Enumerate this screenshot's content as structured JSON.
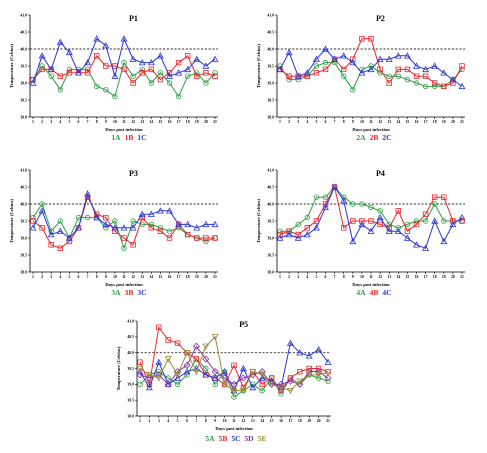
{
  "chart_data": [
    {
      "type": "line",
      "title": "P1",
      "xlabel": "Days post infection",
      "ylabel": "Temperature (Celsius)",
      "ylim": [
        38.0,
        41.0
      ],
      "yticks": [
        "38.0",
        "38.5",
        "39.0",
        "39.5",
        "40.0",
        "40.5",
        "41.0"
      ],
      "x": [
        1,
        2,
        3,
        4,
        5,
        6,
        7,
        8,
        9,
        10,
        11,
        12,
        13,
        14,
        15,
        16,
        17,
        18,
        19,
        20,
        21
      ],
      "reference_line": 40.0,
      "series": [
        {
          "name": "1A",
          "color": "#2e9e44",
          "marker": "circle",
          "values": [
            39.1,
            39.5,
            39.2,
            38.8,
            39.4,
            39.4,
            39.4,
            38.9,
            38.8,
            38.6,
            39.6,
            39.2,
            39.4,
            39.0,
            39.3,
            39.0,
            38.6,
            39.2,
            39.3,
            39.0,
            39.3
          ]
        },
        {
          "name": "1B",
          "color": "#e8262b",
          "marker": "square",
          "values": [
            39.1,
            39.4,
            39.4,
            39.2,
            39.3,
            39.3,
            39.3,
            39.8,
            39.5,
            39.5,
            39.4,
            39.0,
            39.3,
            39.4,
            39.1,
            39.3,
            39.6,
            39.8,
            39.2,
            39.3,
            39.2
          ]
        },
        {
          "name": "1C",
          "color": "#2a35d8",
          "marker": "triangle",
          "values": [
            39.0,
            39.8,
            39.4,
            40.2,
            39.9,
            39.3,
            39.6,
            40.3,
            40.1,
            39.2,
            40.3,
            39.7,
            39.6,
            39.6,
            39.8,
            39.2,
            39.3,
            39.4,
            39.7,
            39.5,
            39.7
          ]
        }
      ]
    },
    {
      "type": "line",
      "title": "P2",
      "xlabel": "Days post infection",
      "ylabel": "Temperature (Celsius)",
      "ylim": [
        38.0,
        41.0
      ],
      "yticks": [
        "38.0",
        "38.5",
        "39.0",
        "39.5",
        "40.0",
        "40.5",
        "41.0"
      ],
      "x": [
        1,
        2,
        3,
        4,
        5,
        6,
        7,
        8,
        9,
        10,
        11,
        12,
        13,
        14,
        15,
        16,
        17,
        18,
        19,
        20,
        21
      ],
      "reference_line": 40.0,
      "series": [
        {
          "name": "2A",
          "color": "#2e9e44",
          "marker": "circle",
          "values": [
            39.5,
            39.1,
            39.1,
            39.2,
            39.5,
            39.6,
            39.6,
            39.2,
            38.8,
            39.4,
            39.5,
            39.3,
            39.2,
            39.2,
            39.1,
            39.0,
            38.9,
            38.9,
            38.9,
            39.1,
            39.4
          ]
        },
        {
          "name": "2B",
          "color": "#e8262b",
          "marker": "square",
          "values": [
            39.4,
            39.2,
            39.2,
            39.2,
            39.3,
            39.4,
            39.7,
            39.4,
            39.7,
            40.3,
            40.3,
            39.4,
            39.0,
            39.4,
            39.4,
            39.2,
            39.2,
            39.0,
            38.9,
            39.0,
            39.5
          ]
        },
        {
          "name": "2C",
          "color": "#2a35d8",
          "marker": "triangle",
          "values": [
            39.4,
            39.9,
            39.2,
            39.3,
            39.7,
            40.0,
            39.7,
            39.8,
            39.6,
            39.3,
            39.4,
            39.7,
            39.7,
            39.8,
            39.8,
            39.5,
            39.4,
            39.5,
            39.3,
            39.1,
            38.9
          ]
        }
      ]
    },
    {
      "type": "line",
      "title": "P3",
      "xlabel": "Days post infection",
      "ylabel": "Temperature (Celsius)",
      "ylim": [
        38.0,
        41.0
      ],
      "yticks": [
        "38.0",
        "38.5",
        "39.0",
        "39.5",
        "40.0",
        "40.5",
        "41.0"
      ],
      "x": [
        1,
        2,
        3,
        4,
        5,
        6,
        7,
        8,
        9,
        10,
        11,
        12,
        13,
        14,
        15,
        16,
        17,
        18,
        19,
        20,
        21
      ],
      "reference_line": 40.0,
      "series": [
        {
          "name": "3A",
          "color": "#2e9e44",
          "marker": "circle",
          "values": [
            39.6,
            40.0,
            39.2,
            39.5,
            39.0,
            39.6,
            39.6,
            39.6,
            39.3,
            39.5,
            38.7,
            39.5,
            39.4,
            39.4,
            39.3,
            39.2,
            39.3,
            39.1,
            39.0,
            38.9,
            39.0
          ]
        },
        {
          "name": "3B",
          "color": "#e8262b",
          "marker": "square",
          "values": [
            39.5,
            39.3,
            38.8,
            38.7,
            38.9,
            39.3,
            40.2,
            39.7,
            39.6,
            39.2,
            39.0,
            38.8,
            39.6,
            39.3,
            39.2,
            39.0,
            39.4,
            39.1,
            39.0,
            39.0,
            39.0
          ]
        },
        {
          "name": "3C",
          "color": "#2a35d8",
          "marker": "triangle",
          "values": [
            39.3,
            39.8,
            39.1,
            39.2,
            39.0,
            39.3,
            40.3,
            39.6,
            39.4,
            39.3,
            39.3,
            39.3,
            39.7,
            39.7,
            39.8,
            39.8,
            39.4,
            39.4,
            39.3,
            39.4,
            39.4
          ]
        }
      ]
    },
    {
      "type": "line",
      "title": "P4",
      "xlabel": "Days post infection",
      "ylabel": "Temperature (Celsius)",
      "ylim": [
        38.0,
        41.0
      ],
      "yticks": [
        "38.0",
        "38.5",
        "39.0",
        "39.5",
        "40.0",
        "40.5",
        "41.0"
      ],
      "x": [
        1,
        2,
        3,
        4,
        5,
        6,
        7,
        8,
        9,
        10,
        11,
        12,
        13,
        14,
        15,
        16,
        17,
        18,
        19,
        20,
        21
      ],
      "reference_line": 40.0,
      "series": [
        {
          "name": "4A",
          "color": "#2e9e44",
          "marker": "circle",
          "values": [
            39.2,
            39.2,
            39.4,
            39.6,
            40.2,
            40.2,
            40.5,
            40.2,
            40.0,
            40.0,
            39.9,
            39.8,
            39.4,
            39.3,
            39.4,
            39.5,
            39.5,
            40.0,
            39.5,
            39.5,
            39.5
          ]
        },
        {
          "name": "4B",
          "color": "#e8262b",
          "marker": "square",
          "values": [
            39.1,
            39.2,
            39.1,
            39.3,
            39.5,
            40.0,
            40.5,
            39.3,
            39.5,
            39.5,
            39.5,
            39.4,
            39.3,
            39.8,
            39.2,
            39.4,
            39.7,
            40.2,
            40.2,
            39.5,
            39.5
          ]
        },
        {
          "name": "4C",
          "color": "#2a35d8",
          "marker": "triangle",
          "values": [
            39.0,
            39.1,
            39.0,
            39.1,
            39.3,
            39.9,
            40.5,
            40.1,
            38.9,
            39.4,
            39.2,
            39.6,
            39.2,
            39.2,
            39.0,
            38.8,
            38.7,
            39.5,
            38.9,
            39.4,
            39.6
          ]
        }
      ]
    },
    {
      "type": "line",
      "title": "P5",
      "xlabel": "Days post infection",
      "ylabel": "Temperature (Celsius)",
      "ylim": [
        38.0,
        41.0
      ],
      "yticks": [
        "38.0",
        "38.5",
        "39.0",
        "39.5",
        "40.0",
        "40.5",
        "41.0"
      ],
      "x": [
        1,
        2,
        3,
        4,
        5,
        6,
        7,
        8,
        9,
        10,
        11,
        12,
        13,
        14,
        15,
        16,
        17,
        18,
        19,
        20,
        21
      ],
      "reference_line": 40.0,
      "series": [
        {
          "name": "5A",
          "color": "#2e9e44",
          "marker": "circle",
          "values": [
            39.0,
            39.3,
            39.4,
            39.2,
            39.0,
            39.3,
            39.8,
            39.5,
            39.0,
            39.4,
            38.6,
            38.8,
            39.0,
            38.8,
            39.2,
            38.7,
            39.2,
            39.0,
            39.3,
            39.2,
            39.1
          ]
        },
        {
          "name": "5B",
          "color": "#e8262b",
          "marker": "square",
          "values": [
            39.7,
            39.0,
            40.8,
            40.4,
            40.3,
            40.0,
            39.8,
            39.3,
            39.2,
            39.0,
            39.6,
            38.9,
            39.4,
            39.0,
            39.2,
            38.8,
            39.2,
            39.4,
            39.5,
            39.5,
            39.4
          ]
        },
        {
          "name": "5C",
          "color": "#2a35d8",
          "marker": "triangle",
          "values": [
            39.4,
            38.9,
            39.7,
            39.0,
            39.2,
            39.4,
            39.5,
            39.3,
            39.2,
            39.4,
            38.8,
            39.5,
            38.9,
            39.2,
            39.1,
            38.9,
            40.3,
            40.0,
            39.9,
            40.1,
            39.7
          ]
        },
        {
          "name": "5D",
          "color": "#8b2fa8",
          "marker": "diamond",
          "values": [
            39.3,
            39.2,
            39.3,
            39.0,
            39.4,
            39.6,
            40.2,
            39.8,
            39.4,
            39.2,
            39.0,
            39.2,
            39.3,
            39.4,
            39.0,
            39.0,
            39.1,
            39.0,
            39.4,
            39.4,
            39.2
          ]
        },
        {
          "name": "5E",
          "color": "#9c8a3c",
          "marker": "triangle-down",
          "values": [
            39.5,
            39.3,
            39.2,
            39.8,
            39.3,
            40.0,
            39.4,
            40.2,
            40.5,
            39.0,
            38.8,
            38.8,
            39.4,
            39.3,
            39.0,
            38.9,
            38.8,
            39.1,
            39.3,
            39.3,
            39.4
          ]
        }
      ]
    }
  ]
}
